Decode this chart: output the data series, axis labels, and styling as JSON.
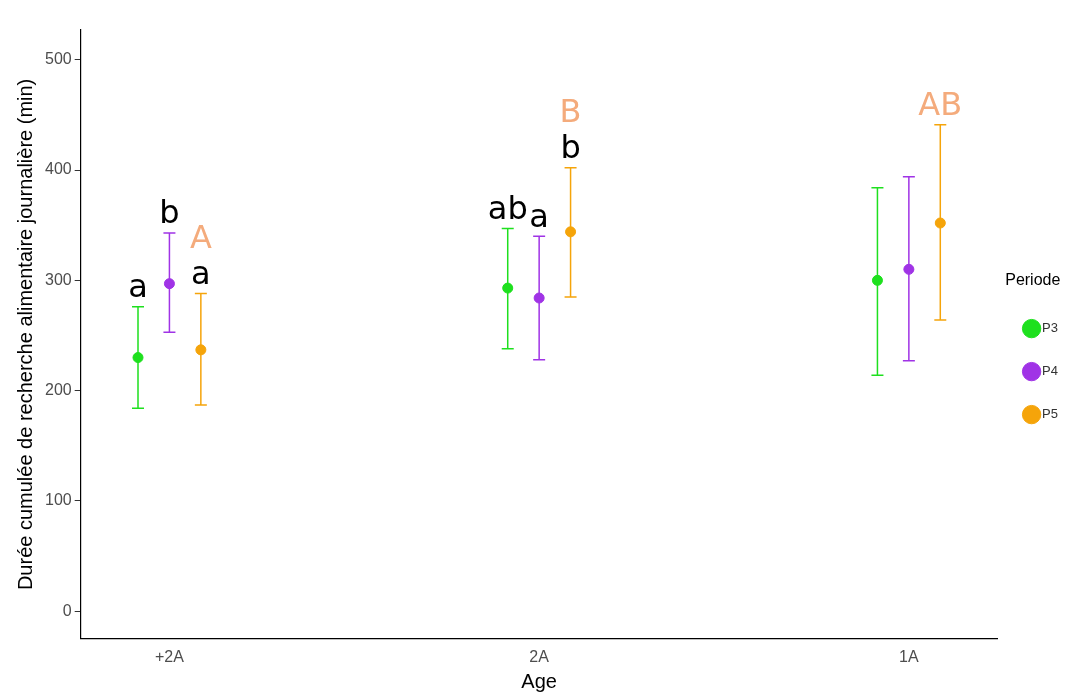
{
  "chart_data": {
    "type": "scatter",
    "xlabel": "Age",
    "ylabel": "Durée cumulée de recherche alimentaire journalière (min)",
    "legend_title": "Periode",
    "categories": [
      "+2A",
      "2A",
      "1A"
    ],
    "series": [
      {
        "name": "P3",
        "color": "#1ee01e",
        "values": [
          230,
          293,
          300
        ],
        "errors": [
          [
            184,
            276
          ],
          [
            238,
            347
          ],
          [
            214,
            384
          ]
        ]
      },
      {
        "name": "P4",
        "color": "#a033e6",
        "values": [
          297,
          284,
          310
        ],
        "errors": [
          [
            253,
            343
          ],
          [
            228,
            340
          ],
          [
            227,
            394
          ]
        ]
      },
      {
        "name": "P5",
        "color": "#f5a40a",
        "values": [
          237,
          344,
          352
        ],
        "errors": [
          [
            187,
            288
          ],
          [
            285,
            402
          ],
          [
            264,
            441
          ]
        ]
      }
    ],
    "ylim": [
      -25,
      527
    ],
    "yticks": [
      0,
      100,
      200,
      300,
      400,
      500
    ],
    "grid": false,
    "legend": "right",
    "marker": "circle",
    "annotations": [
      "a",
      "b",
      "a",
      "A",
      "ab",
      "a",
      "b",
      "B",
      "AB"
    ]
  }
}
